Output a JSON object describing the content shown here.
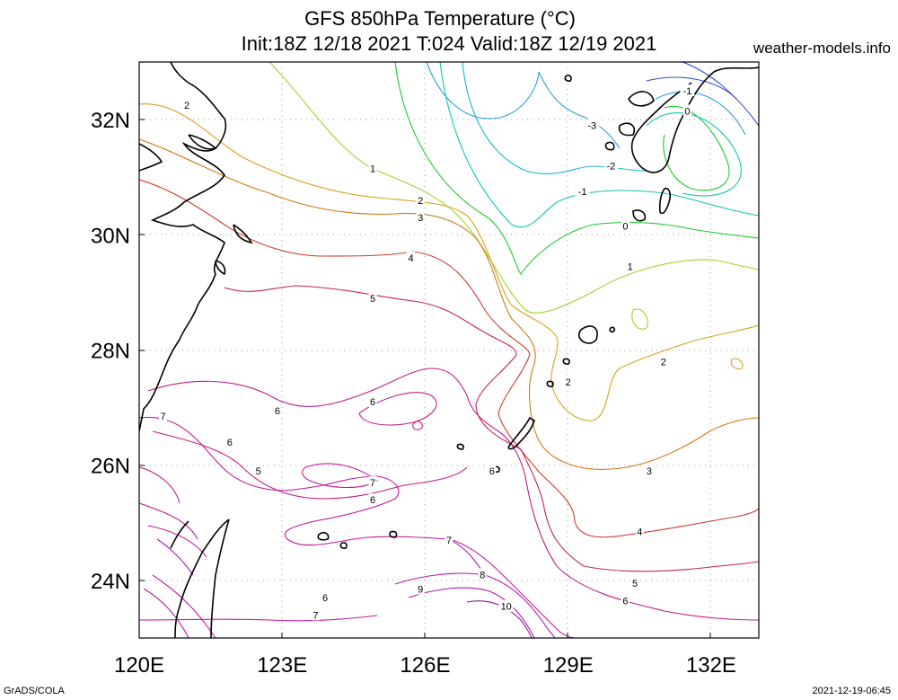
{
  "header": {
    "title_line_1": "GFS 850hPa Temperature (°C)",
    "title_line_2": "Init:18Z 12/18 2021 T:024 Valid:18Z 12/19 2021",
    "site": "weather-models.info"
  },
  "footer": {
    "left": "GrADS/COLA",
    "right": "2021-12-19-06:45"
  },
  "map": {
    "lon_range": [
      120,
      133
    ],
    "lat_range": [
      23,
      33
    ],
    "lon_ticks": [
      {
        "value": 120,
        "label": "120E"
      },
      {
        "value": 123,
        "label": "123E"
      },
      {
        "value": 126,
        "label": "126E"
      },
      {
        "value": 129,
        "label": "129E"
      },
      {
        "value": 132,
        "label": "132E"
      }
    ],
    "lat_ticks": [
      {
        "value": 24,
        "label": "24N"
      },
      {
        "value": 26,
        "label": "26N"
      },
      {
        "value": 28,
        "label": "28N"
      },
      {
        "value": 30,
        "label": "30N"
      },
      {
        "value": 32,
        "label": "32N"
      }
    ],
    "grid": true,
    "contour_colors": {
      "-3": "#2b9fd8",
      "-2": "#12b5d8",
      "-1": "#0ec8b0",
      "0": "#1fc82a",
      "1": "#9ad628",
      "2": "#d8a21c",
      "3": "#cf7a16",
      "4": "#cc3b2a",
      "5": "#c0245c",
      "6": "#bf1f86",
      "7": "#c41a9c",
      "8": "#b81aa4",
      "9": "#a81aa8",
      "10": "#9418a0"
    },
    "contour_labels": [
      {
        "text": "2",
        "lon": 121.0,
        "lat": 32.25,
        "level": "2"
      },
      {
        "text": "1",
        "lon": 124.9,
        "lat": 31.15,
        "level": "1"
      },
      {
        "text": "2",
        "lon": 125.9,
        "lat": 30.6,
        "level": "2"
      },
      {
        "text": "3",
        "lon": 125.9,
        "lat": 30.3,
        "level": "3"
      },
      {
        "text": "4",
        "lon": 125.7,
        "lat": 29.6,
        "level": "4"
      },
      {
        "text": "5",
        "lon": 124.9,
        "lat": 28.9,
        "level": "5"
      },
      {
        "text": "6",
        "lon": 124.9,
        "lat": 27.1,
        "level": "6"
      },
      {
        "text": "6",
        "lon": 122.9,
        "lat": 26.95,
        "level": "6"
      },
      {
        "text": "7",
        "lon": 120.5,
        "lat": 26.85,
        "level": "7"
      },
      {
        "text": "6",
        "lon": 121.9,
        "lat": 26.4,
        "level": "6"
      },
      {
        "text": "5",
        "lon": 122.5,
        "lat": 25.9,
        "level": "5"
      },
      {
        "text": "7",
        "lon": 124.9,
        "lat": 25.7,
        "level": "7"
      },
      {
        "text": "6",
        "lon": 124.9,
        "lat": 25.4,
        "level": "6"
      },
      {
        "text": "6",
        "lon": 127.4,
        "lat": 25.9,
        "level": "6"
      },
      {
        "text": "7",
        "lon": 126.5,
        "lat": 24.7,
        "level": "7"
      },
      {
        "text": "8",
        "lon": 127.2,
        "lat": 24.1,
        "level": "8"
      },
      {
        "text": "9",
        "lon": 125.9,
        "lat": 23.85,
        "level": "9"
      },
      {
        "text": "10",
        "lon": 127.7,
        "lat": 23.55,
        "level": "10"
      },
      {
        "text": "6",
        "lon": 123.9,
        "lat": 23.7,
        "level": "6"
      },
      {
        "text": "7",
        "lon": 123.7,
        "lat": 23.4,
        "level": "7"
      },
      {
        "text": "-3",
        "lon": 129.5,
        "lat": 31.9,
        "level": "-3"
      },
      {
        "text": "-2",
        "lon": 129.9,
        "lat": 31.2,
        "level": "-2"
      },
      {
        "text": "-1",
        "lon": 129.3,
        "lat": 30.75,
        "level": "-1"
      },
      {
        "text": "0",
        "lon": 130.2,
        "lat": 30.15,
        "level": "0"
      },
      {
        "text": "-1",
        "lon": 131.5,
        "lat": 32.5,
        "level": "-1"
      },
      {
        "text": "0",
        "lon": 131.5,
        "lat": 32.15,
        "level": "0"
      },
      {
        "text": "1",
        "lon": 130.3,
        "lat": 29.45,
        "level": "1"
      },
      {
        "text": "2",
        "lon": 131.0,
        "lat": 27.8,
        "level": "2"
      },
      {
        "text": "2",
        "lon": 129.0,
        "lat": 27.45,
        "level": "2"
      },
      {
        "text": "3",
        "lon": 130.7,
        "lat": 25.9,
        "level": "3"
      },
      {
        "text": "4",
        "lon": 130.5,
        "lat": 24.85,
        "level": "4"
      },
      {
        "text": "5",
        "lon": 130.4,
        "lat": 23.95,
        "level": "5"
      },
      {
        "text": "6",
        "lon": 130.2,
        "lat": 23.65,
        "level": "6"
      }
    ]
  }
}
